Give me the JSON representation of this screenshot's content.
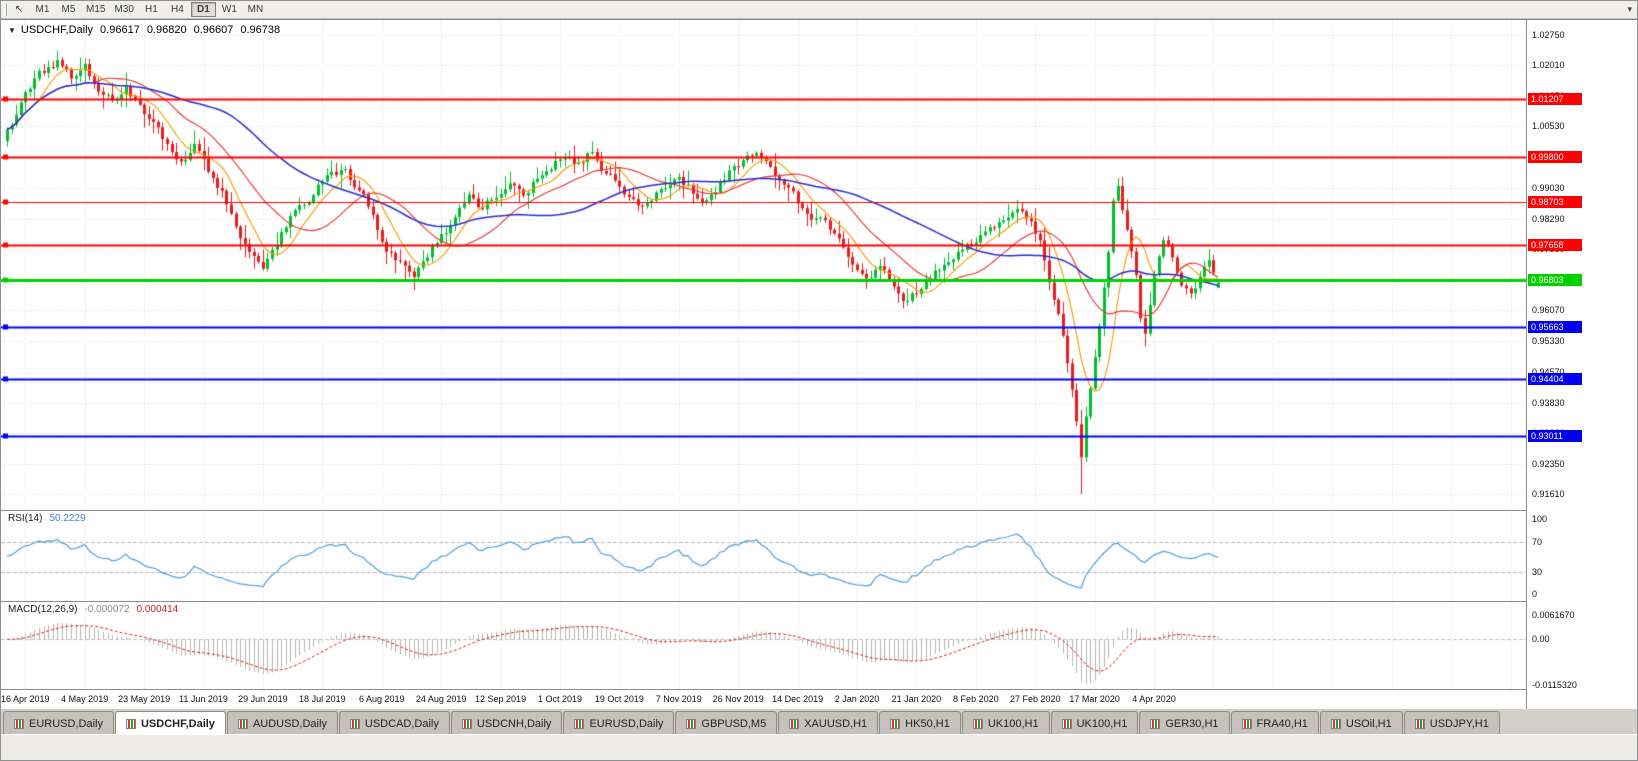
{
  "icons": {
    "collapse": "▼",
    "cursor": "↖",
    "overflow": "▾"
  },
  "toolbar": {
    "timeframes": [
      "M1",
      "M5",
      "M15",
      "M30",
      "H1",
      "H4",
      "D1",
      "W1",
      "MN"
    ],
    "active_timeframe": "D1"
  },
  "chart": {
    "title_symbol": "USDCHF,Daily",
    "ohlc": {
      "open": "0.96617",
      "high": "0.96820",
      "low": "0.96607",
      "close": "0.96738"
    }
  },
  "price_axis": {
    "labels": [
      "1.02750",
      "1.02010",
      "1.01270",
      "1.00530",
      "0.99790",
      "0.99030",
      "0.98290",
      "0.97550",
      "0.96810",
      "0.96070",
      "0.95330",
      "0.94570",
      "0.93830",
      "0.93090",
      "0.92350",
      "0.91610"
    ]
  },
  "date_axis": {
    "labels": [
      "16 Apr 2019",
      "4 May 2019",
      "23 May 2019",
      "11 Jun 2019",
      "29 Jun 2019",
      "18 Jul 2019",
      "6 Aug 2019",
      "24 Aug 2019",
      "12 Sep 2019",
      "1 Oct 2019",
      "19 Oct 2019",
      "7 Nov 2019",
      "26 Nov 2019",
      "14 Dec 2019",
      "2 Jan 2020",
      "21 Jan 2020",
      "8 Feb 2020",
      "27 Feb 2020",
      "17 Mar 2020",
      "4 Apr 2020"
    ]
  },
  "rsi_panel": {
    "name": "RSI(14)",
    "value": "50.2229",
    "axis_labels": [
      "100",
      "70",
      "30",
      "0"
    ],
    "levels": [
      70,
      30
    ],
    "line_color": "#4da0dd"
  },
  "macd_panel": {
    "name": "MACD(12,26,9)",
    "value_main": "-0.000072",
    "value_signal": "0.000414",
    "axis_labels": [
      "0.0061670",
      "0.00",
      "-0.0115320"
    ],
    "axis_max": 0.006167,
    "axis_min": -0.011532,
    "hist_color": "#b4b4b4",
    "signal_color": "#d42020"
  },
  "tabs": {
    "items": [
      "EURUSD,Daily",
      "USDCHF,Daily",
      "AUDUSD,Daily",
      "USDCAD,Daily",
      "USDCNH,Daily",
      "EURUSD,Daily",
      "GBPUSD,M5",
      "XAUUSD,H1",
      "HK50,H1",
      "UK100,H1",
      "UK100,H1",
      "GER30,H1",
      "FRA40,H1",
      "USOil,H1",
      "USDJPY,H1"
    ],
    "active_index": 1
  },
  "chart_data": {
    "type": "candlestick",
    "symbol": "USDCHF",
    "timeframe": "Daily",
    "num_candles": 266,
    "visible_price_range": {
      "top": 1.0275,
      "bottom": 0.9161
    },
    "x_axis": {
      "tick_start_index": 4,
      "tick_interval": 13
    },
    "up_color": "#00bf2f",
    "down_color": "#ea1c1c",
    "close_waypoints": [
      [
        0,
        1.004
      ],
      [
        3,
        1.0105
      ],
      [
        6,
        1.017
      ],
      [
        9,
        1.0195
      ],
      [
        11,
        1.0215
      ],
      [
        14,
        1.0175
      ],
      [
        17,
        1.0195
      ],
      [
        20,
        1.015
      ],
      [
        23,
        1.012
      ],
      [
        26,
        1.0145
      ],
      [
        29,
        1.0095
      ],
      [
        32,
        1.0055
      ],
      [
        35,
        1.0
      ],
      [
        38,
        0.9975
      ],
      [
        41,
        1.0005
      ],
      [
        44,
        0.9945
      ],
      [
        47,
        0.9895
      ],
      [
        50,
        0.982
      ],
      [
        53,
        0.9745
      ],
      [
        56,
        0.9712
      ],
      [
        59,
        0.9775
      ],
      [
        62,
        0.983
      ],
      [
        65,
        0.987
      ],
      [
        68,
        0.9905
      ],
      [
        71,
        0.993
      ],
      [
        74,
        0.9945
      ],
      [
        77,
        0.99
      ],
      [
        80,
        0.984
      ],
      [
        83,
        0.9745
      ],
      [
        86,
        0.9718
      ],
      [
        89,
        0.97
      ],
      [
        92,
        0.9745
      ],
      [
        95,
        0.979
      ],
      [
        98,
        0.983
      ],
      [
        101,
        0.988
      ],
      [
        104,
        0.9855
      ],
      [
        107,
        0.9885
      ],
      [
        110,
        0.991
      ],
      [
        113,
        0.989
      ],
      [
        116,
        0.9925
      ],
      [
        119,
        0.9955
      ],
      [
        122,
        0.9985
      ],
      [
        125,
        0.996
      ],
      [
        128,
        0.999
      ],
      [
        131,
        0.994
      ],
      [
        134,
        0.9905
      ],
      [
        137,
        0.987
      ],
      [
        140,
        0.986
      ],
      [
        143,
        0.99
      ],
      [
        146,
        0.9935
      ],
      [
        149,
        0.9905
      ],
      [
        152,
        0.987
      ],
      [
        155,
        0.99
      ],
      [
        158,
        0.994
      ],
      [
        161,
        0.997
      ],
      [
        164,
        0.999
      ],
      [
        167,
        0.995
      ],
      [
        170,
        0.9905
      ],
      [
        173,
        0.987
      ],
      [
        176,
        0.984
      ],
      [
        179,
        0.9815
      ],
      [
        182,
        0.978
      ],
      [
        185,
        0.972
      ],
      [
        188,
        0.969
      ],
      [
        191,
        0.9715
      ],
      [
        194,
        0.967
      ],
      [
        197,
        0.963
      ],
      [
        200,
        0.9665
      ],
      [
        203,
        0.97
      ],
      [
        206,
        0.9725
      ],
      [
        209,
        0.976
      ],
      [
        212,
        0.9775
      ],
      [
        215,
        0.98
      ],
      [
        218,
        0.983
      ],
      [
        221,
        0.9845
      ],
      [
        224,
        0.982
      ],
      [
        226,
        0.977
      ],
      [
        228,
        0.968
      ],
      [
        230,
        0.959
      ],
      [
        232,
        0.948
      ],
      [
        234,
        0.933
      ],
      [
        235,
        0.925
      ],
      [
        236,
        0.935
      ],
      [
        237,
        0.942
      ],
      [
        239,
        0.956
      ],
      [
        241,
        0.974
      ],
      [
        242,
        0.986
      ],
      [
        243,
        0.9895
      ],
      [
        245,
        0.98
      ],
      [
        247,
        0.968
      ],
      [
        248,
        0.959
      ],
      [
        249,
        0.956
      ],
      [
        251,
        0.97
      ],
      [
        253,
        0.979
      ],
      [
        255,
        0.974
      ],
      [
        257,
        0.968
      ],
      [
        259,
        0.964
      ],
      [
        261,
        0.968
      ],
      [
        263,
        0.972
      ],
      [
        265,
        0.9674
      ]
    ],
    "candle_overrides": [
      {
        "i": 235,
        "o": 0.933,
        "h": 0.9365,
        "l": 0.9161,
        "c": 0.925
      },
      {
        "i": 265,
        "o": 0.96617,
        "h": 0.9682,
        "l": 0.96607,
        "c": 0.96738
      }
    ],
    "hlines": [
      {
        "value": 1.01207,
        "label": "1.01207",
        "color": "#ff0000",
        "width": 2
      },
      {
        "value": 0.998,
        "label": "0.99800",
        "color": "#ff0000",
        "width": 2
      },
      {
        "value": 0.98703,
        "label": "0.98703",
        "color": "#ff0000",
        "width": 1
      },
      {
        "value": 0.97658,
        "label": "0.97658",
        "color": "#ff0000",
        "width": 2
      },
      {
        "value": 0.96803,
        "label": "0.96803",
        "color": "#00d200",
        "width": 3
      },
      {
        "value": 0.95663,
        "label": "0.95663",
        "color": "#0000ee",
        "width": 2
      },
      {
        "value": 0.94404,
        "label": "0.94404",
        "color": "#0000ee",
        "width": 2
      },
      {
        "value": 0.93011,
        "label": "0.93011",
        "color": "#0000ee",
        "width": 2
      }
    ],
    "ma": [
      {
        "period": 8,
        "color": "#f59a00",
        "width": 1.1
      },
      {
        "period": 20,
        "color": "#e83030",
        "width": 1.1
      },
      {
        "period": 45,
        "color": "#2b2bd0",
        "width": 1.5
      }
    ]
  }
}
